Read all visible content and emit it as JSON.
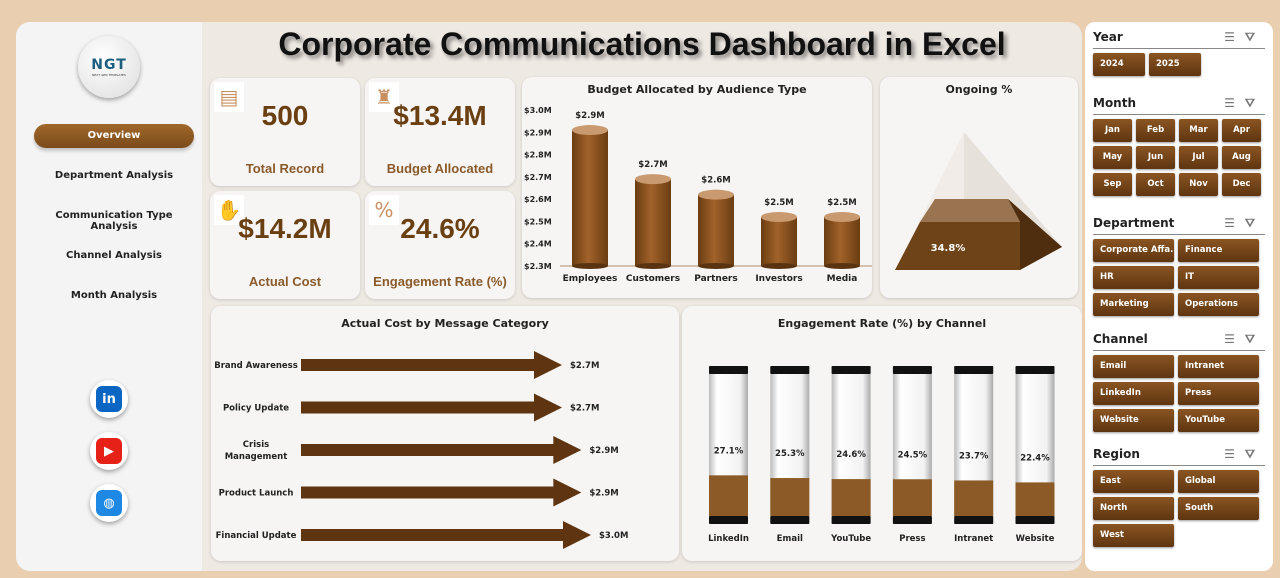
{
  "title": "Corporate Communications Dashboard in Excel",
  "logo": {
    "text": "NGT",
    "subtext": "NEXT GEN TEMPLATES"
  },
  "nav": [
    {
      "label": "Overview",
      "active": true
    },
    {
      "label": "Department Analysis"
    },
    {
      "label": "Communication Type Analysis"
    },
    {
      "label": "Channel Analysis"
    },
    {
      "label": "Month Analysis"
    }
  ],
  "social": [
    {
      "icon": "linkedin-icon",
      "glyph": "in",
      "color": "#0a66c2"
    },
    {
      "icon": "youtube-icon",
      "glyph": "▶",
      "color": "#e62117"
    },
    {
      "icon": "globe-icon",
      "glyph": "◍",
      "color": "#1e88e5"
    }
  ],
  "kpis": [
    {
      "value": "500",
      "label": "Total Record",
      "icon": "clipboard-icon"
    },
    {
      "value": "$13.4M",
      "label": "Budget Allocated",
      "icon": "money-bag-icon"
    },
    {
      "value": "$14.2M",
      "label": "Actual Cost",
      "icon": "cash-hand-icon"
    },
    {
      "value": "24.6%",
      "label": "Engagement Rate (%)",
      "icon": "percent-icon"
    }
  ],
  "chart_data": [
    {
      "type": "bar",
      "title": "Budget Allocated by Audience Type",
      "categories": [
        "Employees",
        "Customers",
        "Partners",
        "Investors",
        "Media"
      ],
      "values": [
        2.91,
        2.69,
        2.62,
        2.52,
        2.52
      ],
      "data_labels": [
        "$2.9M",
        "$2.7M",
        "$2.6M",
        "$2.5M",
        "$2.5M"
      ],
      "ylim": [
        2.3,
        3.0
      ],
      "yticks": [
        "$3.0M",
        "$2.9M",
        "$2.8M",
        "$2.7M",
        "$2.6M",
        "$2.5M",
        "$2.4M",
        "$2.3M"
      ],
      "color": "#8b5520"
    },
    {
      "type": "pie",
      "title": "Ongoing %",
      "values": [
        34.8
      ],
      "data_labels": [
        "34.8%"
      ],
      "color": "#6e4318"
    },
    {
      "type": "bar",
      "orientation": "horizontal",
      "title": "Actual Cost by Message Category",
      "categories": [
        "Brand Awareness",
        "Policy Update",
        "Crisis Management",
        "Product Launch",
        "Financial Update"
      ],
      "values": [
        2.7,
        2.7,
        2.9,
        2.9,
        3.0
      ],
      "data_labels": [
        "$2.7M",
        "$2.7M",
        "$2.9M",
        "$2.9M",
        "$3.0M"
      ],
      "color": "#5e3510"
    },
    {
      "type": "bar",
      "title": "Engagement Rate (%) by Channel",
      "categories": [
        "LinkedIn",
        "Email",
        "YouTube",
        "Press",
        "Intranet",
        "Website"
      ],
      "values": [
        27.1,
        25.3,
        24.6,
        24.5,
        23.7,
        22.4
      ],
      "data_labels": [
        "27.1%",
        "25.3%",
        "24.6%",
        "24.5%",
        "23.7%",
        "22.4%"
      ],
      "color": "#8b5a26"
    }
  ],
  "filters": [
    {
      "title": "Year",
      "cols": 2,
      "items": [
        "2024",
        "2025"
      ]
    },
    {
      "title": "Month",
      "cols": 4,
      "items": [
        "Jan",
        "Feb",
        "Mar",
        "Apr",
        "May",
        "Jun",
        "Jul",
        "Aug",
        "Sep",
        "Oct",
        "Nov",
        "Dec"
      ]
    },
    {
      "title": "Department",
      "cols": 2,
      "items": [
        "Corporate Affa...",
        "Finance",
        "HR",
        "IT",
        "Marketing",
        "Operations"
      ]
    },
    {
      "title": "Channel",
      "cols": 2,
      "items": [
        "Email",
        "Intranet",
        "LinkedIn",
        "Press",
        "Website",
        "YouTube"
      ]
    },
    {
      "title": "Region",
      "cols": 2,
      "items": [
        "East",
        "Global",
        "North",
        "South",
        "West"
      ]
    }
  ]
}
